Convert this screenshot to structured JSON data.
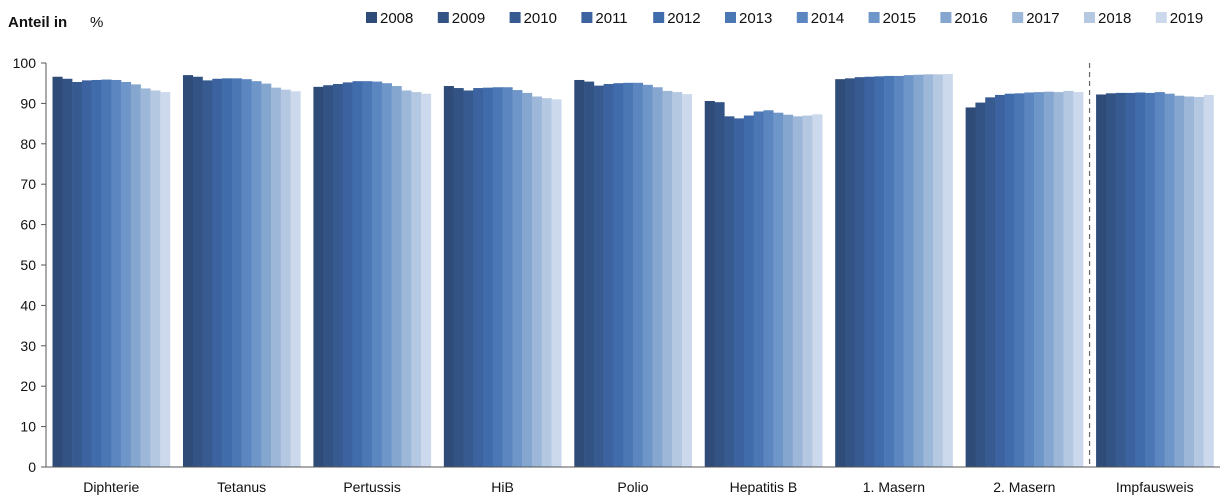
{
  "chart_data": {
    "type": "bar",
    "ylabel_prefix": "Anteil in",
    "ylabel_unit": "%",
    "ylim": [
      0,
      100
    ],
    "yticks": [
      0,
      10,
      20,
      30,
      40,
      50,
      60,
      70,
      80,
      90,
      100
    ],
    "grid": false,
    "legend_position": "top-right",
    "categories": [
      "Diphterie",
      "Tetanus",
      "Pertussis",
      "HiB",
      "Polio",
      "Hepatitis B",
      "1. Masern",
      "2. Masern",
      "Impfausweis"
    ],
    "separator_before_category": "Impfausweis",
    "series": [
      {
        "name": "2008",
        "color": "#2f4b77",
        "values": [
          96.6,
          97.0,
          94.1,
          94.3,
          95.8,
          90.6,
          96.0,
          89.0,
          92.2
        ]
      },
      {
        "name": "2009",
        "color": "#335384",
        "values": [
          96.1,
          96.6,
          94.5,
          93.8,
          95.4,
          90.3,
          96.2,
          90.2,
          92.5
        ]
      },
      {
        "name": "2010",
        "color": "#375b91",
        "values": [
          95.3,
          95.7,
          94.8,
          93.2,
          94.4,
          86.8,
          96.5,
          91.5,
          92.6
        ]
      },
      {
        "name": "2011",
        "color": "#3c639f",
        "values": [
          95.7,
          96.1,
          95.2,
          93.8,
          94.8,
          86.3,
          96.6,
          92.1,
          92.6
        ]
      },
      {
        "name": "2012",
        "color": "#406cab",
        "values": [
          95.8,
          96.2,
          95.5,
          93.9,
          95.0,
          87.0,
          96.7,
          92.4,
          92.7
        ]
      },
      {
        "name": "2013",
        "color": "#4b77b5",
        "values": [
          95.9,
          96.2,
          95.5,
          94.0,
          95.1,
          88.0,
          96.8,
          92.5,
          92.6
        ]
      },
      {
        "name": "2014",
        "color": "#5b86bf",
        "values": [
          95.8,
          96.0,
          95.4,
          94.0,
          95.1,
          88.3,
          96.8,
          92.7,
          92.8
        ]
      },
      {
        "name": "2015",
        "color": "#6e96c8",
        "values": [
          95.3,
          95.5,
          95.0,
          93.3,
          94.6,
          87.7,
          97.0,
          92.8,
          92.4
        ]
      },
      {
        "name": "2016",
        "color": "#85a6cf",
        "values": [
          94.7,
          94.9,
          94.3,
          92.6,
          94.0,
          87.2,
          97.1,
          92.9,
          91.9
        ]
      },
      {
        "name": "2017",
        "color": "#9db7d8",
        "values": [
          93.7,
          93.9,
          93.2,
          91.7,
          93.1,
          86.8,
          97.2,
          92.8,
          91.7
        ]
      },
      {
        "name": "2018",
        "color": "#b5c8e2",
        "values": [
          93.2,
          93.4,
          92.8,
          91.3,
          92.8,
          87.0,
          97.2,
          93.1,
          91.6
        ]
      },
      {
        "name": "2019",
        "color": "#ccd9ec",
        "values": [
          92.8,
          93.0,
          92.4,
          91.0,
          92.3,
          87.3,
          97.3,
          92.8,
          92.1
        ]
      }
    ]
  }
}
